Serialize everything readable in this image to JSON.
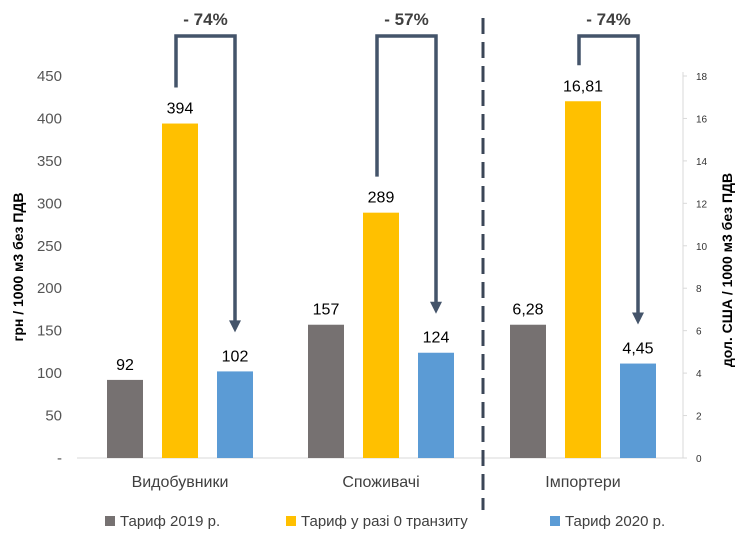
{
  "chart_data": {
    "type": "bar",
    "categories": [
      "Видобувники",
      "Споживачі",
      "Імпортери"
    ],
    "series": [
      {
        "name": "Тариф 2019 р.",
        "color": "#767171",
        "values": [
          92,
          157,
          6.28
        ],
        "labels": [
          "92",
          "157",
          "6,28"
        ]
      },
      {
        "name": "Тариф у разі 0 транзиту",
        "color": "#FFC000",
        "values": [
          394,
          289,
          16.81
        ],
        "labels": [
          "394",
          "289",
          "16,81"
        ]
      },
      {
        "name": "Тариф 2020 р.",
        "color": "#5B9BD5",
        "values": [
          102,
          124,
          4.45
        ],
        "labels": [
          "102",
          "124",
          "4,45"
        ]
      }
    ],
    "value_axis_for_category": [
      "left",
      "left",
      "right"
    ],
    "changes": [
      "- 74%",
      "- 57%",
      "- 74%"
    ],
    "ylabel_left": "грн / 1000 м3 без ПДВ",
    "ylabel_right": "дол. США / 1000 м3 без ПДВ",
    "ylim_left": [
      0,
      450
    ],
    "ylim_right": [
      0,
      18
    ],
    "yticks_left": [
      "-",
      "50",
      "100",
      "150",
      "200",
      "250",
      "300",
      "350",
      "400",
      "450"
    ],
    "yticks_right": [
      "0",
      "2",
      "4",
      "6",
      "8",
      "10",
      "12",
      "14",
      "16",
      "18"
    ],
    "grid": false,
    "legend_position": "bottom"
  }
}
